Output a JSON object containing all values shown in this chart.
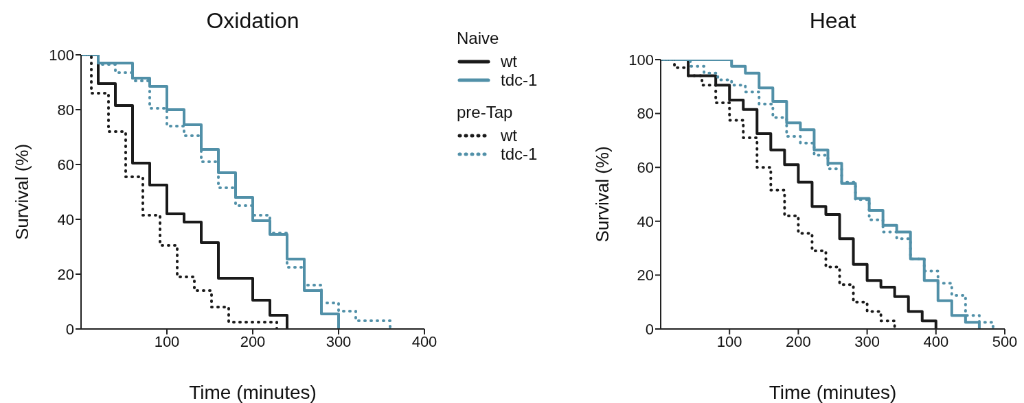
{
  "chart_data": [
    {
      "type": "step",
      "title": "Oxidation",
      "xlabel": "Time (minutes)",
      "ylabel": "Survival (%)",
      "legend_title": "Naive",
      "annotations": [
        "pre-Tap"
      ],
      "legend": "right",
      "xlim": [
        0,
        400
      ],
      "xticks": [
        100,
        200,
        300,
        400
      ],
      "ylim": [
        0,
        100
      ],
      "yticks": [
        0,
        20,
        40,
        60,
        80,
        100
      ],
      "series": [
        {
          "name": "wt",
          "color": "#1a1a1a",
          "line_style": "solid",
          "x": [
            0,
            20,
            40,
            60,
            80,
            100,
            120,
            140,
            160,
            200,
            220,
            240
          ],
          "values": [
            100,
            89.5,
            81.5,
            60.5,
            52.5,
            42,
            39,
            31.5,
            18.5,
            10.5,
            5,
            0
          ]
        },
        {
          "name": "tdc-1",
          "color": "#5190a8",
          "line_style": "solid",
          "x": [
            0,
            20,
            60,
            80,
            100,
            120,
            140,
            160,
            180,
            200,
            220,
            240,
            260,
            280,
            300
          ],
          "values": [
            100,
            97,
            91.5,
            88.5,
            80,
            74.5,
            65.5,
            57,
            48,
            39.5,
            34.5,
            25.5,
            14,
            5.5,
            0
          ]
        },
        {
          "name": "wt",
          "color": "#1a1a1a",
          "line_style": "dotted",
          "x": [
            0,
            12,
            32,
            52,
            72,
            92,
            112,
            132,
            152,
            172,
            228
          ],
          "values": [
            100,
            86,
            72,
            55.5,
            41.5,
            30.5,
            19,
            14,
            8,
            2.5,
            0
          ]
        },
        {
          "name": "tdc-1",
          "color": "#5190a8",
          "line_style": "dotted",
          "x": [
            0,
            20,
            40,
            60,
            80,
            100,
            120,
            140,
            160,
            180,
            200,
            220,
            240,
            260,
            280,
            300,
            320,
            360
          ],
          "values": [
            100,
            96.5,
            93.5,
            90.5,
            80.5,
            74,
            70.5,
            61,
            51.5,
            45,
            41.5,
            35,
            22.5,
            16,
            9.5,
            6.5,
            3,
            0
          ]
        }
      ]
    },
    {
      "type": "step",
      "title": "Heat",
      "xlabel": "Time (minutes)",
      "ylabel": "Survival (%)",
      "xlim": [
        0,
        500
      ],
      "xticks": [
        100,
        200,
        300,
        400,
        500
      ],
      "ylim": [
        0,
        100
      ],
      "yticks": [
        0,
        20,
        40,
        60,
        80,
        100
      ],
      "series": [
        {
          "color": "#1a1a1a",
          "line_style": "solid",
          "x": [
            0,
            40,
            80,
            100,
            120,
            140,
            160,
            180,
            200,
            220,
            240,
            260,
            280,
            300,
            320,
            340,
            360,
            380,
            400
          ],
          "values": [
            100,
            94,
            90.5,
            85,
            81.5,
            72.5,
            66.5,
            61,
            54.5,
            45.5,
            42.5,
            33.5,
            24,
            18,
            15.5,
            12,
            6.5,
            3,
            0
          ]
        },
        {
          "color": "#5190a8",
          "line_style": "solid",
          "x": [
            0,
            103,
            123,
            143,
            163,
            183,
            203,
            223,
            243,
            263,
            283,
            303,
            323,
            343,
            363,
            383,
            403,
            423,
            443,
            463
          ],
          "values": [
            100,
            97.5,
            95,
            89.5,
            84.5,
            76.5,
            74,
            66.5,
            61.5,
            54,
            48.5,
            44,
            38.5,
            36,
            26,
            18,
            10.5,
            5,
            2.5,
            0
          ]
        },
        {
          "color": "#1a1a1a",
          "line_style": "dotted",
          "x": [
            0,
            20,
            40,
            60,
            80,
            100,
            120,
            140,
            160,
            180,
            200,
            220,
            240,
            260,
            280,
            300,
            320,
            340
          ],
          "values": [
            100,
            97,
            94,
            90.5,
            84,
            77.5,
            71,
            60,
            51.5,
            42,
            35.5,
            29,
            23,
            16.5,
            10,
            6.5,
            3,
            0
          ]
        },
        {
          "color": "#5190a8",
          "line_style": "dotted",
          "x": [
            0,
            43,
            63,
            83,
            103,
            123,
            143,
            163,
            183,
            203,
            223,
            243,
            263,
            283,
            303,
            323,
            343,
            363,
            383,
            403,
            423,
            443,
            463,
            483
          ],
          "values": [
            100,
            97.5,
            95,
            92.5,
            90.5,
            88,
            83.5,
            78.5,
            71.5,
            69,
            64.5,
            59.5,
            54.5,
            48,
            40.5,
            36,
            33.5,
            26,
            21.5,
            17,
            12.5,
            5,
            2.5,
            0
          ]
        }
      ]
    }
  ]
}
